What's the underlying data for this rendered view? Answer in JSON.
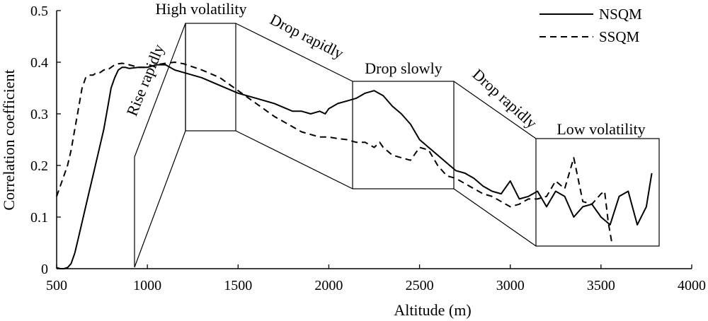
{
  "chart_data": {
    "type": "line",
    "title": "",
    "xlabel": "Altitude (m)",
    "ylabel": "Correlation coefficient",
    "xlim": [
      500,
      4000
    ],
    "ylim": [
      0,
      0.5
    ],
    "xticks": [
      500,
      1000,
      1500,
      2000,
      2500,
      3000,
      3500,
      4000
    ],
    "yticks": [
      0,
      0.1,
      0.2,
      0.3,
      0.4,
      0.5
    ],
    "xtick_labels": [
      "500",
      "1000",
      "1500",
      "2000",
      "2500",
      "3000",
      "3500",
      "4000"
    ],
    "ytick_labels": [
      "0",
      "0.1",
      "0.2",
      "0.3",
      "0.4",
      "0.5"
    ],
    "grid": false,
    "legend": "top-right",
    "series": [
      {
        "name": "NSQM",
        "style": "solid",
        "color": "#000000",
        "x": [
          500,
          520,
          540,
          560,
          580,
          600,
          620,
          640,
          660,
          680,
          700,
          720,
          740,
          760,
          780,
          800,
          820,
          840,
          860,
          880,
          900,
          950,
          1000,
          1050,
          1100,
          1150,
          1200,
          1300,
          1400,
          1500,
          1600,
          1700,
          1800,
          1850,
          1900,
          1950,
          1980,
          2000,
          2050,
          2100,
          2150,
          2200,
          2250,
          2300,
          2350,
          2400,
          2450,
          2500,
          2550,
          2600,
          2650,
          2700,
          2750,
          2800,
          2850,
          2900,
          2950,
          3000,
          3050,
          3100,
          3150,
          3200,
          3250,
          3300,
          3350,
          3400,
          3450,
          3500,
          3550,
          3600,
          3650,
          3700,
          3750,
          3780
        ],
        "values": [
          0.002,
          0.0,
          0.0,
          0.002,
          0.01,
          0.03,
          0.06,
          0.09,
          0.12,
          0.15,
          0.18,
          0.21,
          0.24,
          0.27,
          0.31,
          0.35,
          0.37,
          0.385,
          0.39,
          0.39,
          0.388,
          0.39,
          0.39,
          0.395,
          0.395,
          0.385,
          0.38,
          0.37,
          0.355,
          0.34,
          0.33,
          0.32,
          0.305,
          0.305,
          0.3,
          0.305,
          0.3,
          0.31,
          0.32,
          0.325,
          0.33,
          0.34,
          0.345,
          0.335,
          0.315,
          0.3,
          0.28,
          0.25,
          0.235,
          0.22,
          0.205,
          0.19,
          0.185,
          0.175,
          0.16,
          0.15,
          0.145,
          0.17,
          0.135,
          0.14,
          0.15,
          0.12,
          0.15,
          0.14,
          0.1,
          0.12,
          0.125,
          0.1,
          0.085,
          0.14,
          0.15,
          0.085,
          0.12,
          0.185
        ]
      },
      {
        "name": "SSQM",
        "style": "dashed",
        "color": "#000000",
        "x": [
          500,
          520,
          540,
          560,
          580,
          600,
          620,
          640,
          660,
          680,
          700,
          720,
          740,
          760,
          780,
          800,
          820,
          840,
          860,
          880,
          900,
          950,
          1000,
          1050,
          1100,
          1150,
          1200,
          1300,
          1400,
          1500,
          1600,
          1700,
          1800,
          1850,
          1900,
          1950,
          2000,
          2050,
          2100,
          2150,
          2200,
          2250,
          2280,
          2300,
          2350,
          2400,
          2450,
          2500,
          2550,
          2600,
          2650,
          2700,
          2750,
          2800,
          2850,
          2900,
          2950,
          3000,
          3050,
          3100,
          3150,
          3200,
          3250,
          3300,
          3350,
          3400,
          3450,
          3500,
          3520,
          3540,
          3560
        ],
        "values": [
          0.14,
          0.16,
          0.18,
          0.2,
          0.23,
          0.27,
          0.31,
          0.35,
          0.37,
          0.375,
          0.375,
          0.38,
          0.38,
          0.385,
          0.385,
          0.39,
          0.395,
          0.397,
          0.398,
          0.397,
          0.395,
          0.39,
          0.39,
          0.395,
          0.398,
          0.4,
          0.397,
          0.385,
          0.37,
          0.345,
          0.32,
          0.295,
          0.275,
          0.265,
          0.26,
          0.255,
          0.255,
          0.252,
          0.25,
          0.245,
          0.245,
          0.235,
          0.245,
          0.235,
          0.22,
          0.215,
          0.21,
          0.235,
          0.23,
          0.2,
          0.18,
          0.175,
          0.165,
          0.155,
          0.145,
          0.14,
          0.13,
          0.12,
          0.125,
          0.135,
          0.135,
          0.14,
          0.17,
          0.155,
          0.215,
          0.13,
          0.125,
          0.145,
          0.15,
          0.09,
          0.05
        ]
      }
    ],
    "annotations": [
      {
        "text": "Rise rapidly",
        "rotate": -68
      },
      {
        "text": "High volatility",
        "rotate": 0
      },
      {
        "text": "Drop rapidly",
        "rotate": 27
      },
      {
        "text": "Drop slowly",
        "rotate": 0
      },
      {
        "text": "Drop rapidly",
        "rotate": 42
      },
      {
        "text": "Low volatility",
        "rotate": 0
      }
    ]
  }
}
